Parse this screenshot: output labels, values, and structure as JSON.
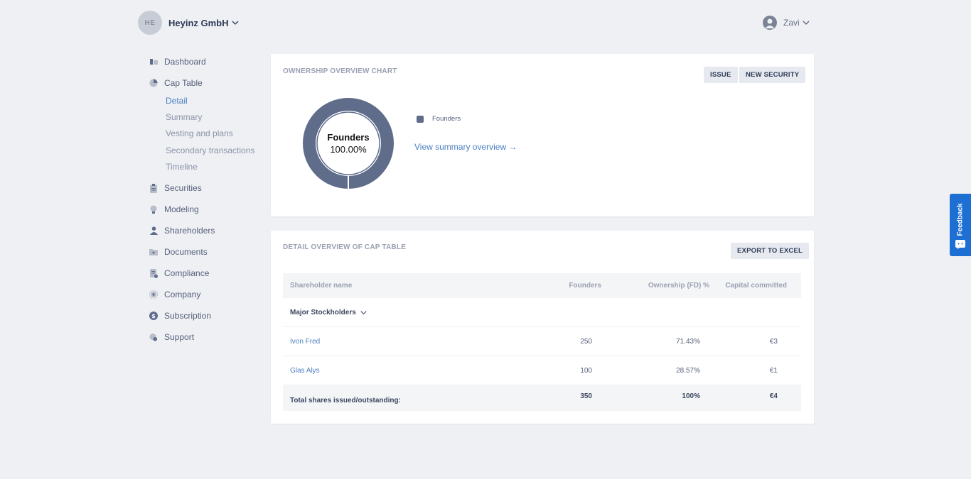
{
  "header": {
    "company_initials": "HE",
    "company_name": "Heyinz GmbH",
    "user_name": "Zavi"
  },
  "sidebar": {
    "items": [
      {
        "label": "Dashboard",
        "icon": "dashboard-icon"
      },
      {
        "label": "Cap Table",
        "icon": "pie-chart-icon"
      },
      {
        "label": "Securities",
        "icon": "clipboard-icon"
      },
      {
        "label": "Modeling",
        "icon": "lightbulb-icon"
      },
      {
        "label": "Shareholders",
        "icon": "person-icon"
      },
      {
        "label": "Documents",
        "icon": "folder-icon"
      },
      {
        "label": "Compliance",
        "icon": "document-check-icon"
      },
      {
        "label": "Company",
        "icon": "gear-icon"
      },
      {
        "label": "Subscription",
        "icon": "dollar-icon"
      },
      {
        "label": "Support",
        "icon": "support-icon"
      }
    ],
    "cap_table_sub": [
      "Detail",
      "Summary",
      "Vesting and plans",
      "Secondary transactions",
      "Timeline"
    ],
    "active_sub": "Detail"
  },
  "ownership_card": {
    "title": "OWNERSHIP OVERVIEW CHART",
    "issue_label": "ISSUE",
    "new_security_label": "NEW SECURITY",
    "legend_label": "Founders",
    "summary_link": "View summary overview →"
  },
  "chart_data": {
    "type": "pie",
    "categories": [
      "Founders"
    ],
    "values": [
      100.0
    ],
    "center_label": "Founders",
    "center_value": "100.00%",
    "colors": [
      "#5f6d8b"
    ]
  },
  "detail_card": {
    "title": "DETAIL OVERVIEW OF CAP TABLE",
    "export_label": "EXPORT TO EXCEL",
    "columns": [
      "Shareholder name",
      "Founders",
      "Ownership (FD) %",
      "Capital committed"
    ],
    "group_label": "Major Stockholders",
    "rows": [
      {
        "name": "Ivon Fred",
        "founders": "250",
        "ownership": "71.43%",
        "capital": "€3"
      },
      {
        "name": "Glas Alys",
        "founders": "100",
        "ownership": "28.57%",
        "capital": "€1"
      }
    ],
    "total": {
      "label": "Total shares issued/outstanding:",
      "founders": "350",
      "ownership": "100%",
      "capital": "€4"
    }
  },
  "feedback": {
    "label": "Feedback"
  },
  "colors": {
    "accent": "#4a7fc1",
    "donut": "#5f6d8b",
    "feedback": "#1e6fd4"
  }
}
